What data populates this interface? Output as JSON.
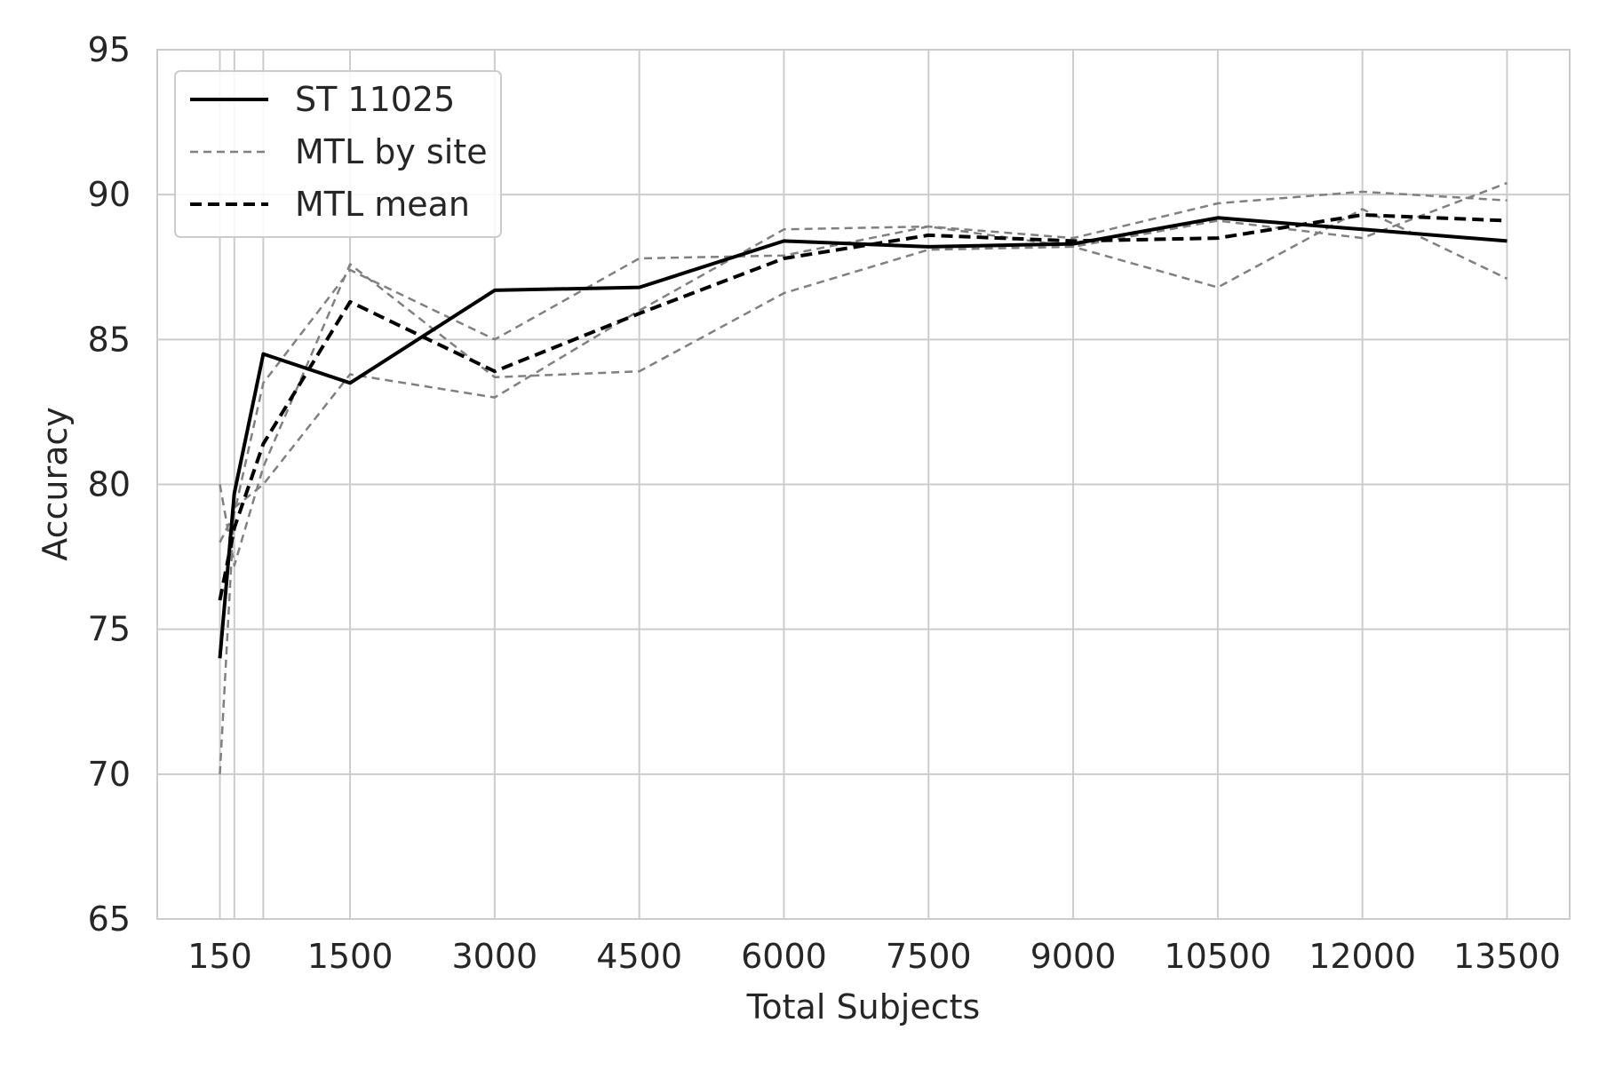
{
  "chart_data": {
    "type": "line",
    "xlabel": "Total Subjects",
    "ylabel": "Accuracy",
    "x": [
      150,
      300,
      600,
      1500,
      3000,
      4500,
      6000,
      7500,
      9000,
      10500,
      12000,
      13500
    ],
    "xticks": [
      150,
      1500,
      3000,
      4500,
      6000,
      7500,
      9000,
      10500,
      12000,
      13500
    ],
    "xlim": [
      -500,
      14150
    ],
    "ylim": [
      65,
      95
    ],
    "yticks": [
      65,
      70,
      75,
      80,
      85,
      90,
      95
    ],
    "grid": true,
    "legend_position": "top-left",
    "series": [
      {
        "name": "ST 11025",
        "style": "solid",
        "color": "#000000",
        "values": [
          74.0,
          79.7,
          84.5,
          83.5,
          86.7,
          86.8,
          88.4,
          88.2,
          88.3,
          89.2,
          88.8,
          88.4
        ]
      },
      {
        "name": "MTL by site",
        "style": "thin-dashed",
        "color": "#808080",
        "values": [
          80.0,
          77.2,
          80.6,
          87.6,
          83.7,
          83.9,
          86.6,
          88.1,
          88.2,
          89.1,
          88.5,
          90.4
        ]
      },
      {
        "name": "",
        "style": "thin-dashed",
        "color": "#808080",
        "values": [
          78.0,
          79.0,
          83.5,
          87.4,
          85.0,
          87.8,
          87.9,
          88.9,
          88.2,
          86.8,
          89.5,
          87.1
        ]
      },
      {
        "name": "",
        "style": "thin-dashed",
        "color": "#808080",
        "values": [
          70.0,
          79.2,
          80.0,
          83.8,
          83.0,
          86.0,
          88.8,
          88.9,
          88.5,
          89.7,
          90.1,
          89.8
        ]
      },
      {
        "name": "MTL mean",
        "style": "thick-dashed",
        "color": "#000000",
        "values": [
          76.0,
          78.5,
          81.4,
          86.3,
          83.9,
          85.9,
          87.8,
          88.6,
          88.4,
          88.5,
          89.3,
          89.1
        ]
      }
    ]
  }
}
